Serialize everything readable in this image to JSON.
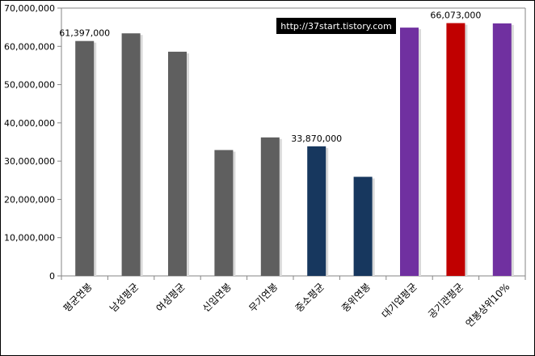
{
  "chart_data": {
    "type": "bar",
    "title": "",
    "xlabel": "",
    "ylabel": "",
    "categories": [
      "평균연봉",
      "남성평균",
      "여성평균",
      "신입연봉",
      "무기연봉",
      "중소평균",
      "중위연봉",
      "대기업평균",
      "공기관평균",
      "연봉상위10%"
    ],
    "values": [
      61397000,
      63400000,
      58600000,
      32900000,
      36200000,
      33870000,
      25900000,
      64900000,
      66073000,
      66000000
    ],
    "bar_colors": [
      "#5f5f5f",
      "#5f5f5f",
      "#5f5f5f",
      "#5f5f5f",
      "#5f5f5f",
      "#17375e",
      "#17375e",
      "#7030a0",
      "#c00000",
      "#7030a0"
    ],
    "data_labels": [
      {
        "index": 0,
        "text": "61,397,000"
      },
      {
        "index": 5,
        "text": "33,870,000"
      },
      {
        "index": 8,
        "text": "66,073,000"
      }
    ],
    "ylim": [
      0,
      70000000
    ],
    "yticks": [
      0,
      10000000,
      20000000,
      30000000,
      40000000,
      50000000,
      60000000,
      70000000
    ],
    "ytick_labels": [
      "0",
      "10,000,000",
      "20,000,000",
      "30,000,000",
      "40,000,000",
      "50,000,000",
      "60,000,000",
      "70,000,000"
    ],
    "grid": false,
    "legend": "none"
  },
  "watermark": {
    "text": "http://37start.tistory.com"
  },
  "colors": {
    "axis": "#868686",
    "plot_border": "#868686",
    "outer_border": "#000000",
    "watermark_bg": "#000000",
    "bar_shadow": "#d9d9d9"
  }
}
